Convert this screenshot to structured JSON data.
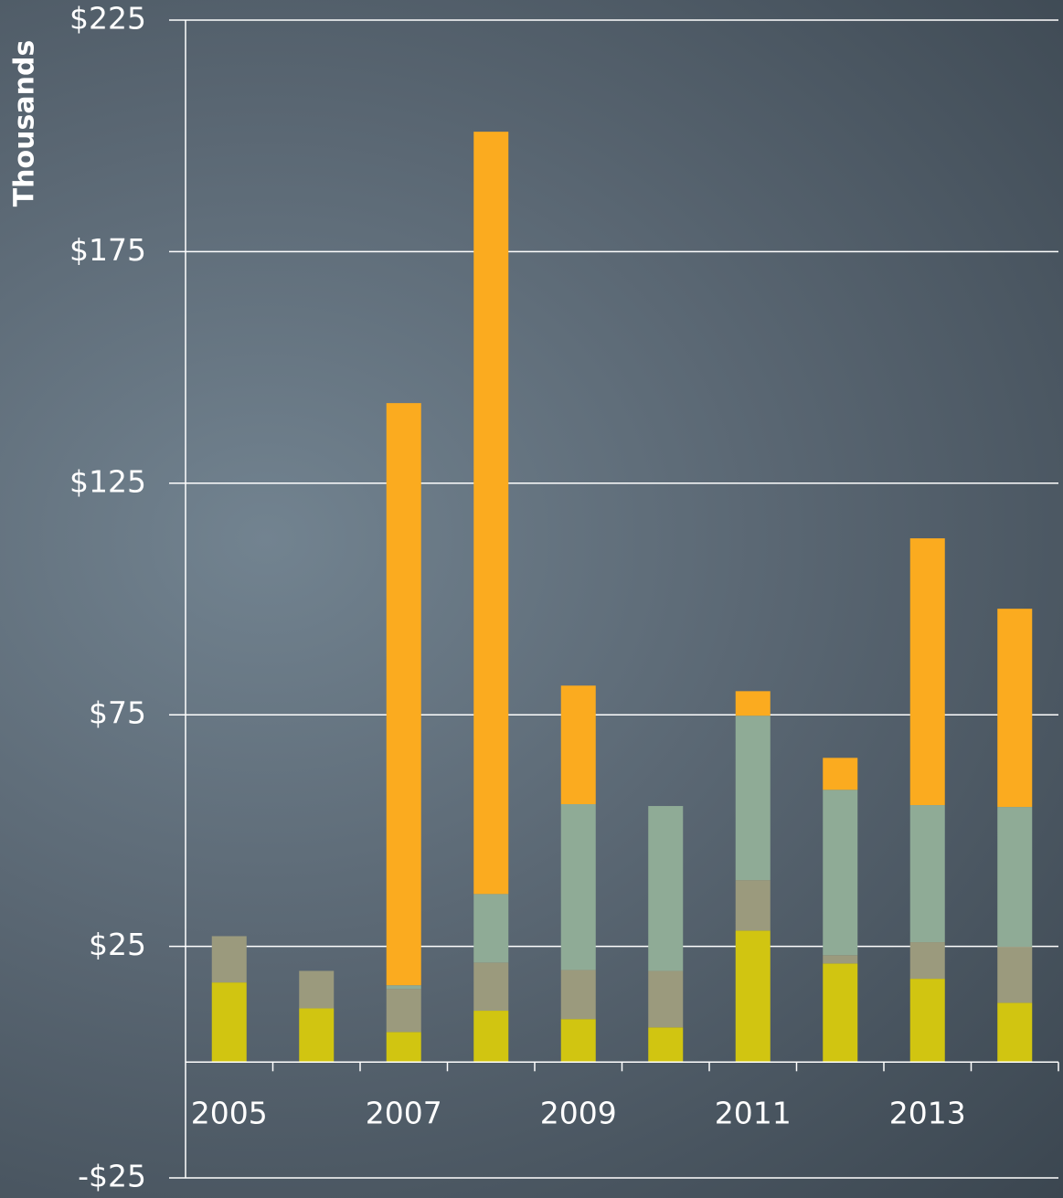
{
  "chart_data": {
    "type": "stacked_bar",
    "ylabel": "Thousands",
    "categories": [
      "2005",
      null,
      "2007",
      null,
      "2009",
      null,
      "2011",
      null,
      "2013",
      null
    ],
    "series": [
      {
        "color": "#d1c511",
        "values": [
          17.2,
          11.6,
          6.5,
          11.1,
          9.3,
          7.5,
          28.4,
          21.3,
          18.0,
          12.8
        ]
      },
      {
        "color": "#9b9a7d",
        "values": [
          10.0,
          8.1,
          9.3,
          10.4,
          10.6,
          12.2,
          10.9,
          1.8,
          7.9,
          12.1
        ]
      },
      {
        "color": "#8fab96",
        "values": [
          0,
          0,
          0.8,
          14.8,
          35.8,
          35.6,
          35.5,
          35.7,
          29.6,
          30.2
        ]
      },
      {
        "color": "#fbab1f",
        "values": [
          0,
          0,
          125.7,
          164.6,
          25.6,
          0,
          5.3,
          6.9,
          57.6,
          42.8
        ]
      }
    ],
    "ylim": [
      -25,
      225
    ],
    "yticks": [
      {
        "value": -25,
        "label": "-$25"
      },
      {
        "value": 25,
        "label": "$25"
      },
      {
        "value": 75,
        "label": "$75"
      },
      {
        "value": 125,
        "label": "$125"
      },
      {
        "value": 175,
        "label": "$175"
      },
      {
        "value": 225,
        "label": "$225"
      }
    ],
    "grid": true
  }
}
